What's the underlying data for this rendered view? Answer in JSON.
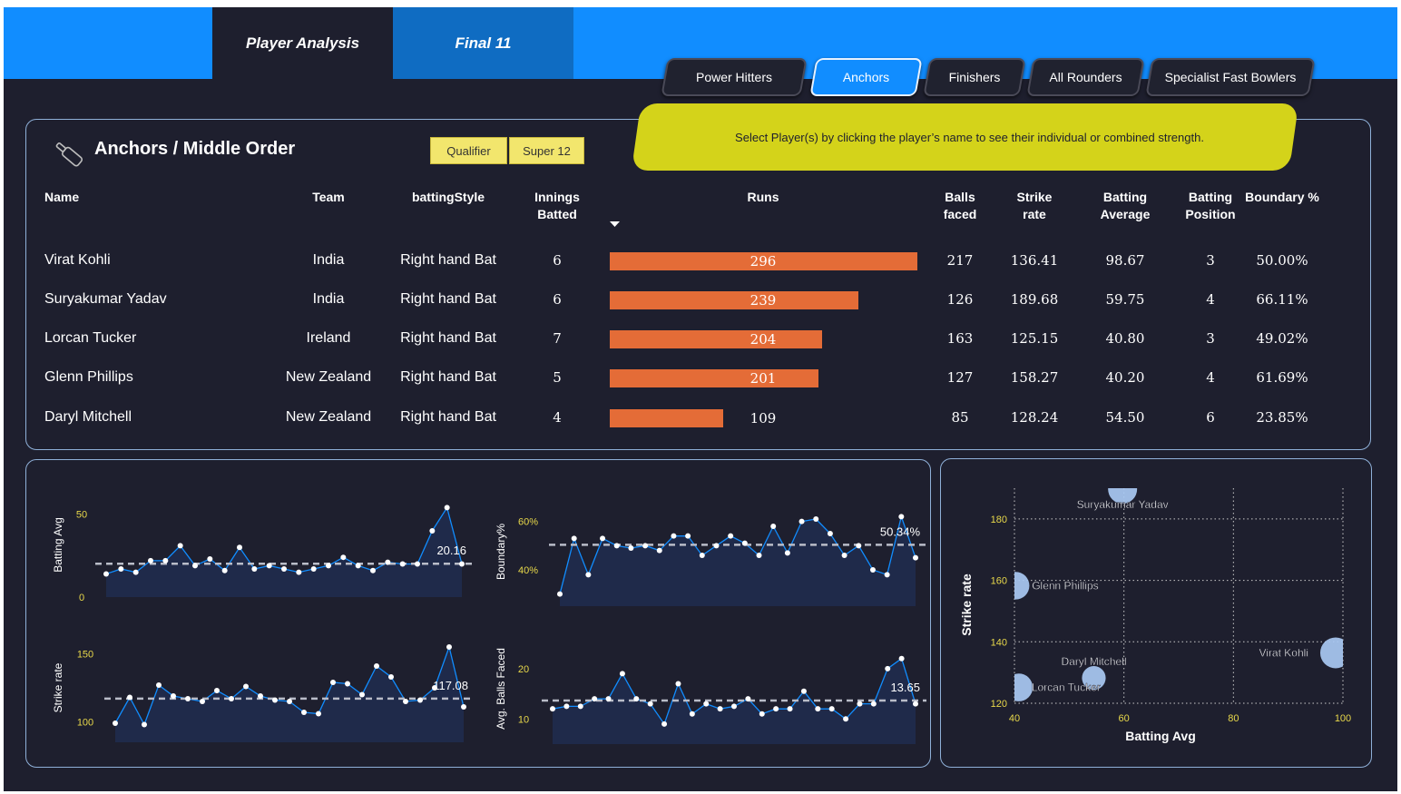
{
  "nav": {
    "tabs": [
      "Player Analysis",
      "Final 11"
    ]
  },
  "categories": [
    "Power Hitters",
    "Anchors",
    "Finishers",
    "All Rounders",
    "Specialist Fast Bowlers"
  ],
  "active_category": "Anchors",
  "banner": "Select Player(s) by clicking the player’s name to see their individual or combined strength.",
  "section": {
    "title": "Anchors / Middle Order",
    "slicers": [
      "Qualifier",
      "Super 12"
    ]
  },
  "table": {
    "headers": {
      "name": "Name",
      "team": "Team",
      "style": "battingStyle",
      "innings_1": "Innings",
      "innings_2": "Batted",
      "runs": "Runs",
      "balls_1": "Balls",
      "balls_2": "faced",
      "sr_1": "Strike",
      "sr_2": "rate",
      "avg_1": "Batting",
      "avg_2": "Average",
      "pos_1": "Batting",
      "pos_2": "Position",
      "boundary": "Boundary %"
    },
    "rows": [
      {
        "name": "Virat Kohli",
        "team": "India",
        "style": "Right hand Bat",
        "innings": "6",
        "runs": 296,
        "balls": "217",
        "sr": "136.41",
        "avg": "98.67",
        "pos": "3",
        "boundary": "50.00%"
      },
      {
        "name": "Suryakumar Yadav",
        "team": "India",
        "style": "Right hand Bat",
        "innings": "6",
        "runs": 239,
        "balls": "126",
        "sr": "189.68",
        "avg": "59.75",
        "pos": "4",
        "boundary": "66.11%"
      },
      {
        "name": "Lorcan Tucker",
        "team": "Ireland",
        "style": "Right hand Bat",
        "innings": "7",
        "runs": 204,
        "balls": "163",
        "sr": "125.15",
        "avg": "40.80",
        "pos": "3",
        "boundary": "49.02%"
      },
      {
        "name": "Glenn Phillips",
        "team": "New Zealand",
        "style": "Right hand Bat",
        "innings": "5",
        "runs": 201,
        "balls": "127",
        "sr": "158.27",
        "avg": "40.20",
        "pos": "4",
        "boundary": "61.69%"
      },
      {
        "name": "Daryl Mitchell",
        "team": "New Zealand",
        "style": "Right hand Bat",
        "innings": "4",
        "runs": 109,
        "balls": "85",
        "sr": "128.24",
        "avg": "54.50",
        "pos": "6",
        "boundary": "23.85%"
      }
    ]
  },
  "chart_data": [
    {
      "type": "line",
      "ylabel": "Batting Avg",
      "ticks": [
        "50",
        "0"
      ],
      "tick_values": [
        50,
        0
      ],
      "ylim": [
        0,
        63
      ],
      "values": [
        14,
        17,
        15,
        22,
        22,
        31,
        19,
        23,
        16,
        30,
        17,
        19,
        17,
        15,
        17,
        19,
        24,
        19,
        16,
        21,
        20,
        20,
        40,
        54,
        20
      ],
      "ref": 20.16,
      "ref_label": "20.16"
    },
    {
      "type": "line",
      "ylabel": "Boundary%",
      "ticks": [
        "60%",
        "40%"
      ],
      "tick_values": [
        60,
        40
      ],
      "ylim": [
        25,
        70
      ],
      "values": [
        30,
        53,
        38,
        53,
        50,
        49,
        50,
        48,
        54,
        54,
        46,
        50,
        54,
        51,
        46,
        58,
        47,
        60,
        61,
        55,
        46,
        50,
        40,
        38,
        62,
        45
      ],
      "ref": 50.34,
      "ref_label": "50.34%"
    },
    {
      "type": "line",
      "ylabel": "Strike rate",
      "ticks": [
        "150",
        "100"
      ],
      "tick_values": [
        150,
        100
      ],
      "ylim": [
        85,
        165
      ],
      "values": [
        99,
        118,
        98,
        127,
        119,
        117,
        115,
        123,
        117,
        126,
        119,
        116,
        115,
        107,
        106,
        129,
        128,
        120,
        141,
        133,
        115,
        116,
        125,
        155,
        111
      ],
      "ref": 117.08,
      "ref_label": "117.08"
    },
    {
      "type": "line",
      "ylabel": "Avg. Balls Faced",
      "ticks": [
        "20",
        "10"
      ],
      "tick_values": [
        20,
        10
      ],
      "ylim": [
        5,
        27
      ],
      "values": [
        12,
        12.5,
        12.5,
        14,
        14,
        19,
        14,
        13,
        9,
        17,
        11,
        13,
        12,
        12.5,
        14,
        11,
        12,
        12,
        15.5,
        12,
        12,
        10,
        13,
        13,
        20,
        22,
        13
      ],
      "ref": 13.65,
      "ref_label": "13.65"
    },
    {
      "type": "scatter",
      "xlabel": "Batting Avg",
      "ylabel": "Strike rate",
      "xlim": [
        40,
        100
      ],
      "ylim": [
        120,
        190
      ],
      "xticks": [
        40,
        60,
        80,
        100
      ],
      "yticks": [
        120,
        140,
        160,
        180
      ],
      "points": [
        {
          "name": "Suryakumar Yadav",
          "x": 59.75,
          "y": 189.68,
          "runs": 239
        },
        {
          "name": "Glenn Phillips",
          "x": 40.2,
          "y": 158.27,
          "runs": 201
        },
        {
          "name": "Virat Kohli",
          "x": 98.67,
          "y": 136.41,
          "runs": 296
        },
        {
          "name": "Daryl Mitchell",
          "x": 54.5,
          "y": 128.24,
          "runs": 109
        },
        {
          "name": "Lorcan Tucker",
          "x": 40.8,
          "y": 125.15,
          "runs": 204
        }
      ]
    }
  ],
  "colors": {
    "accent": "#118dff",
    "bar": "#e46c37",
    "banner": "#d4d31a",
    "line": "#118dff",
    "area": "#1f2a4a",
    "bubble": "#a9c9f3",
    "tick": "#e8d84a"
  }
}
